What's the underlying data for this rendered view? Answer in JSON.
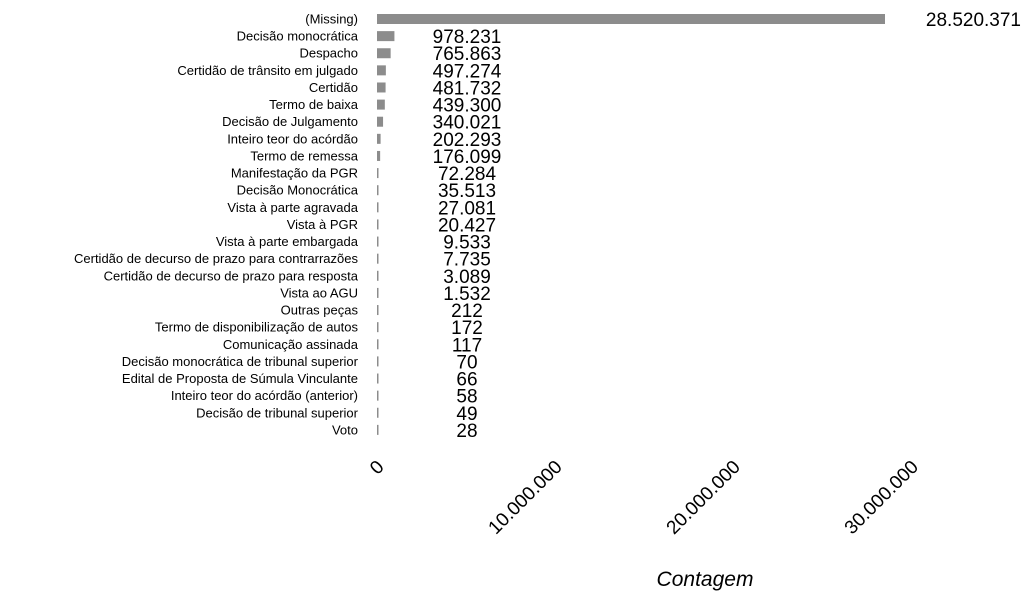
{
  "chart_data": {
    "type": "bar",
    "orientation": "horizontal",
    "xlabel": "Contagem",
    "ylabel": "",
    "xlim": [
      0,
      30000000
    ],
    "xticks": [
      0,
      10000000,
      20000000,
      30000000
    ],
    "xtick_labels": [
      "0",
      "10.000.000",
      "20.000.000",
      "30.000.000"
    ],
    "grid": false,
    "legend": "none",
    "bar_color": "#8c8c8c",
    "categories": [
      "(Missing)",
      "Decisão monocrática",
      "Despacho",
      "Certidão de trânsito em julgado",
      "Certidão",
      "Termo de baixa",
      "Decisão de Julgamento",
      "Inteiro teor do acórdão",
      "Termo de remessa",
      "Manifestação da PGR",
      "Decisão Monocrática",
      "Vista à parte agravada",
      "Vista à PGR",
      "Vista à parte embargada",
      "Certidão de decurso de prazo para contrarrazões",
      "Certidão de decurso de prazo para resposta",
      "Vista ao AGU",
      "Outras peças",
      "Termo de disponibilização de autos",
      "Comunicação assinada",
      "Decisão monocrática de tribunal superior",
      "Edital de Proposta de Súmula Vinculante",
      "Inteiro teor do acórdão (anterior)",
      "Decisão de tribunal superior",
      "Voto"
    ],
    "values": [
      28520371,
      978231,
      765863,
      497274,
      481732,
      439300,
      340021,
      202293,
      176099,
      72284,
      35513,
      27081,
      20427,
      9533,
      7735,
      3089,
      1532,
      212,
      172,
      117,
      70,
      66,
      58,
      49,
      28
    ],
    "value_labels": [
      "28.520.371",
      "978.231",
      "765.863",
      "497.274",
      "481.732",
      "439.300",
      "340.021",
      "202.293",
      "176.099",
      "72.284",
      "35.513",
      "27.081",
      "20.427",
      "9.533",
      "7.735",
      "3.089",
      "1.532",
      "212",
      "172",
      "117",
      "70",
      "66",
      "58",
      "49",
      "28"
    ]
  }
}
